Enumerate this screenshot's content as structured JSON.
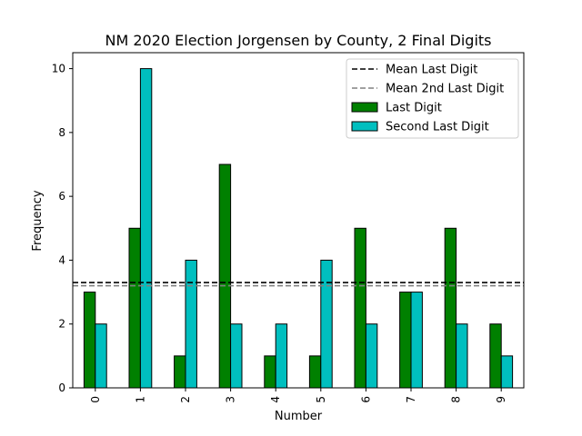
{
  "chart_data": {
    "type": "bar",
    "title": "NM 2020 Election Jorgensen by County, 2 Final Digits",
    "xlabel": "Number",
    "ylabel": "Frequency",
    "categories": [
      "0",
      "1",
      "2",
      "3",
      "4",
      "5",
      "6",
      "7",
      "8",
      "9"
    ],
    "series": [
      {
        "name": "Last Digit",
        "color": "#008000",
        "values": [
          3,
          5,
          1,
          7,
          1,
          1,
          5,
          3,
          5,
          2
        ]
      },
      {
        "name": "Second Last Digit",
        "color": "#00bfbf",
        "values": [
          2,
          10,
          4,
          2,
          2,
          4,
          2,
          3,
          2,
          1
        ]
      }
    ],
    "reference_lines": [
      {
        "name": "Mean Last Digit",
        "value": 3.3,
        "color": "#000000",
        "style": "dashed"
      },
      {
        "name": "Mean 2nd Last Digit",
        "value": 3.2,
        "color": "#808080",
        "style": "dashed"
      }
    ],
    "ylim": [
      0,
      10.5
    ],
    "yticks": [
      "0",
      "2",
      "4",
      "6",
      "8",
      "10"
    ],
    "grid": false,
    "legend_position": "top-right"
  }
}
